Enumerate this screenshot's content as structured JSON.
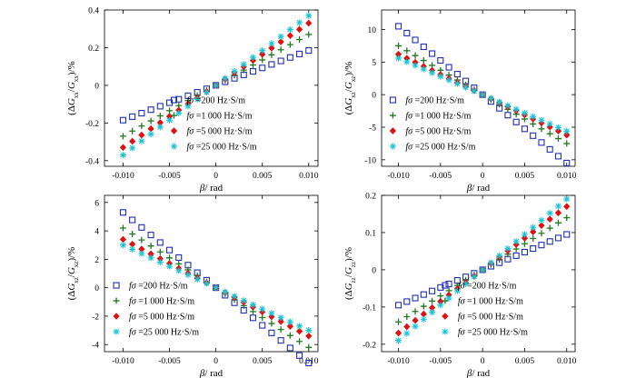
{
  "figure": {
    "x_label_main": "β",
    "x_label_unit": "/ rad",
    "y_label_unit": "/%"
  },
  "legend_entries": [
    {
      "label": "fσ =200 Hz·S/m",
      "marker": "square",
      "color": "#1f2db5"
    },
    {
      "label": "fσ =1 000 Hz·S/m",
      "marker": "plus",
      "color": "#1e7a1e"
    },
    {
      "label": "fσ =5 000 Hz·S/m",
      "marker": "diamond",
      "color": "#e01010"
    },
    {
      "label": "fσ =25 000 Hz·S/m",
      "marker": "star",
      "color": "#18c6d6"
    }
  ],
  "chart_data": [
    {
      "type": "scatter",
      "panel": "top-left",
      "ylabel": "(ΔG_xx/G_xx)/%",
      "ylabel_sub": "xx",
      "xlabel": "β/ rad",
      "xlim": [
        -0.012,
        0.011
      ],
      "ylim": [
        -0.43,
        0.4
      ],
      "xticks": [
        -0.01,
        -0.005,
        0,
        0.005,
        0.01
      ],
      "xtick_labels": [
        "-0.010",
        "-0.005",
        "0",
        "0.005",
        "0.010"
      ],
      "yticks": [
        -0.4,
        -0.2,
        0,
        0.2,
        0.4
      ],
      "ytick_labels": [
        "-0.4",
        "-0.2",
        "0",
        "0.2",
        "0.4"
      ],
      "legend_position": "bottom-right",
      "series": [
        {
          "name": "fσ =200 Hz·S/m",
          "slope": 18.5
        },
        {
          "name": "fσ =1 000 Hz·S/m",
          "slope": 27
        },
        {
          "name": "fσ =5 000 Hz·S/m",
          "slope": 33
        },
        {
          "name": "fσ =25 000 Hz·S/m",
          "slope": 37
        }
      ]
    },
    {
      "type": "scatter",
      "panel": "top-right",
      "ylabel": "(ΔG_xz/G_xz)/%",
      "ylabel_sub": "xz",
      "xlabel": "β/ rad",
      "xlim": [
        -0.012,
        0.011
      ],
      "ylim": [
        -11,
        13
      ],
      "xticks": [
        -0.01,
        -0.005,
        0,
        0.005,
        0.01
      ],
      "xtick_labels": [
        "-0.010",
        "-0.005",
        "0",
        "0.005",
        "0.010"
      ],
      "yticks": [
        -10,
        -5,
        0,
        5,
        10
      ],
      "ytick_labels": [
        "-10",
        "-5",
        "0",
        "5",
        "10"
      ],
      "legend_position": "bottom-left",
      "series": [
        {
          "name": "fσ =200 Hz·S/m",
          "slope": -1050
        },
        {
          "name": "fσ =1 000 Hz·S/m",
          "slope": -750
        },
        {
          "name": "fσ =5 000 Hz·S/m",
          "slope": -620
        },
        {
          "name": "fσ =25 000 Hz·S/m",
          "slope": -560
        }
      ]
    },
    {
      "type": "scatter",
      "panel": "bottom-left",
      "ylabel": "(ΔG_xz/G_xz)/%",
      "ylabel_sub": "xz",
      "xlabel": "β/ rad",
      "xlim": [
        -0.012,
        0.011
      ],
      "ylim": [
        -4.5,
        6.5
      ],
      "xticks": [
        -0.01,
        -0.005,
        0,
        0.005,
        0.01
      ],
      "xtick_labels": [
        "-0.010",
        "-0.005",
        "0",
        "0.005",
        "0.010"
      ],
      "yticks": [
        -4,
        -2,
        0,
        2,
        4,
        6
      ],
      "ytick_labels": [
        "-4",
        "-2",
        "0",
        "2",
        "4",
        "6"
      ],
      "legend_position": "bottom-left",
      "series": [
        {
          "name": "fσ =200 Hz·S/m",
          "slope": -530
        },
        {
          "name": "fσ =1 000 Hz·S/m",
          "slope": -420
        },
        {
          "name": "fσ =5 000 Hz·S/m",
          "slope": -340
        },
        {
          "name": "fσ =25 000 Hz·S/m",
          "slope": -300
        }
      ]
    },
    {
      "type": "scatter",
      "panel": "bottom-right",
      "ylabel": "(ΔG_zz/G_zz)/%",
      "ylabel_sub": "zz",
      "xlabel": "β/ rad",
      "xlim": [
        -0.012,
        0.011
      ],
      "ylim": [
        -0.22,
        0.2
      ],
      "xticks": [
        -0.01,
        -0.005,
        0,
        0.005,
        0.01
      ],
      "xtick_labels": [
        "-0.010",
        "-0.005",
        "0",
        "0.005",
        "0.010"
      ],
      "yticks": [
        -0.2,
        -0.1,
        0,
        0.1,
        0.2
      ],
      "ytick_labels": [
        "-0.2",
        "-0.1",
        "0",
        "0.1",
        "0.2"
      ],
      "legend_position": "bottom-right",
      "series": [
        {
          "name": "fσ =200 Hz·S/m",
          "slope": 9.5
        },
        {
          "name": "fσ =1 000 Hz·S/m",
          "slope": 14
        },
        {
          "name": "fσ =5 000 Hz·S/m",
          "slope": 17
        },
        {
          "name": "fσ =25 000 Hz·S/m",
          "slope": 19
        }
      ]
    }
  ]
}
